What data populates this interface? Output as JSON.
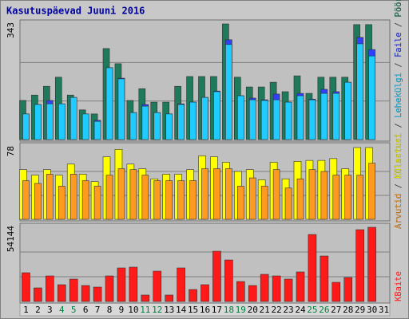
{
  "chart_data": [
    {
      "type": "bar",
      "title": "Kasutuspäevad Juuni 2016",
      "ylim": [
        0,
        343
      ],
      "yticks": [
        343
      ],
      "grid_divisions": 3,
      "series": [
        {
          "name": "Pöördumisi",
          "color": "#1e7a5a",
          "values": [
            116,
            132,
            158,
            185,
            132,
            88,
            76,
            270,
            225,
            116,
            151,
            111,
            111,
            158,
            187,
            187,
            187,
            343,
            185,
            156,
            156,
            170,
            142,
            189,
            137,
            185,
            185,
            185,
            341,
            341,
            null
          ]
        },
        {
          "name": "Faile",
          "color": "#3040ff",
          "values": [
            76,
            104,
            116,
            106,
            125,
            76,
            57,
            213,
            182,
            80,
            104,
            80,
            76,
            106,
            111,
            125,
            144,
            296,
            130,
            123,
            118,
            135,
            111,
            137,
            120,
            149,
            142,
            170,
            303,
            267,
            null
          ]
        },
        {
          "name": "Lehekülgi",
          "color": "#20ccff",
          "values": [
            76,
            104,
            106,
            106,
            125,
            76,
            54,
            213,
            180,
            80,
            99,
            80,
            76,
            104,
            111,
            125,
            142,
            282,
            130,
            118,
            116,
            118,
            111,
            130,
            118,
            137,
            137,
            170,
            284,
            248,
            null
          ]
        }
      ]
    },
    {
      "type": "bar",
      "ylim": [
        0,
        78
      ],
      "yticks": [
        78
      ],
      "grid_divisions": 3,
      "series": [
        {
          "name": "Külastusi",
          "color": "#ffff00",
          "values": [
            54,
            48,
            54,
            48,
            60,
            49,
            41,
            68,
            76,
            60,
            55,
            44,
            49,
            49,
            54,
            69,
            68,
            62,
            52,
            54,
            43,
            62,
            44,
            63,
            64,
            64,
            66,
            55,
            78,
            78,
            null
          ]
        },
        {
          "name": "Arvutid",
          "color": "#ff9a20",
          "values": [
            42,
            39,
            49,
            36,
            49,
            42,
            36,
            48,
            55,
            54,
            48,
            42,
            42,
            42,
            42,
            55,
            55,
            55,
            36,
            45,
            36,
            54,
            34,
            44,
            54,
            52,
            48,
            48,
            48,
            61,
            null
          ]
        }
      ]
    },
    {
      "type": "bar",
      "ylim": [
        0,
        54144
      ],
      "yticks": [
        54144
      ],
      "grid_divisions": 3,
      "series": [
        {
          "name": "KBaite",
          "color": "#ff1a1a",
          "values": [
            20952,
            9894,
            18624,
            12222,
            16296,
            11640,
            10476,
            18624,
            24444,
            25026,
            4656,
            22116,
            4656,
            24444,
            8730,
            12222,
            36666,
            30264,
            14550,
            11640,
            19788,
            18624,
            16296,
            21534,
            48888,
            33174,
            13968,
            17460,
            52380,
            54144,
            null
          ]
        }
      ],
      "categories": [
        "1",
        "2",
        "3",
        "4",
        "5",
        "6",
        "7",
        "8",
        "9",
        "10",
        "11",
        "12",
        "13",
        "14",
        "15",
        "16",
        "17",
        "18",
        "19",
        "20",
        "21",
        "22",
        "23",
        "24",
        "25",
        "26",
        "27",
        "28",
        "29",
        "30",
        "31"
      ],
      "category_colors": [
        "#000000",
        "#000000",
        "#000000",
        "#008040",
        "#008040",
        "#000000",
        "#000000",
        "#000000",
        "#000000",
        "#000000",
        "#008040",
        "#008040",
        "#000000",
        "#000000",
        "#000000",
        "#000000",
        "#000000",
        "#008040",
        "#008040",
        "#000000",
        "#000000",
        "#000000",
        "#000000",
        "#000000",
        "#008040",
        "#008040",
        "#000000",
        "#000000",
        "#000000",
        "#000000",
        "#000000"
      ]
    }
  ],
  "legend_separator": " / "
}
